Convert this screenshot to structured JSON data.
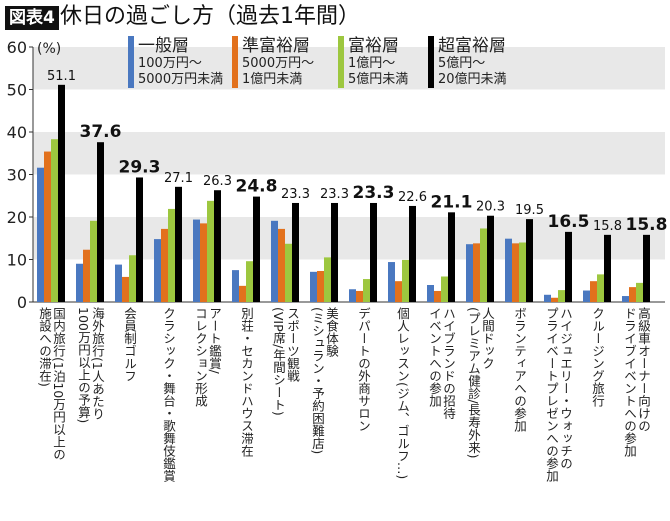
{
  "title_badge": "図表4",
  "title": "休日の過ごし方（過去1年間）",
  "chart_data": {
    "type": "bar",
    "ylabel": "(%)",
    "ylim": [
      0,
      60
    ],
    "yticks": [
      0,
      10,
      20,
      30,
      40,
      50,
      60
    ],
    "grid": "alternating gray bands",
    "legend_placement": "top",
    "categories": [
      [
        "国内旅行(1泊10万円以上の",
        "施設への滞在)"
      ],
      [
        "海外旅行(1人あたり",
        "100万円以上の予算)"
      ],
      [
        "会員制ゴルフ"
      ],
      [
        "クラシック・舞台・歌舞伎鑑賞"
      ],
      [
        "アート鑑賞/",
        "コレクション形成"
      ],
      [
        "別荘・セカンドハウス滞在"
      ],
      [
        "スポーツ観戦",
        "(VIP席/年間シート)"
      ],
      [
        "美食体験",
        "(ミシュラン・予約困難店)"
      ],
      [
        "デパートの外商サロン"
      ],
      [
        "個人レッスン(ジム、ゴルフ…)"
      ],
      [
        "ハイブランドの招待",
        "イベントへの参加"
      ],
      [
        "人間ドック",
        "(プレミアム健診/長寿外来)"
      ],
      [
        "ボランティアへの参加"
      ],
      [
        "ハイジュエリー・ウォッチの",
        "プライベートプレゼンへの参加"
      ],
      [
        "クルージング旅行"
      ],
      [
        "高級車オーナー向けの",
        "ドライブイベントへの参加"
      ]
    ],
    "series": [
      {
        "name": "一般層",
        "desc": [
          "100万円〜",
          "5000万円未満"
        ],
        "color": "#4a78c0",
        "values": [
          31.6,
          9.0,
          8.8,
          14.8,
          19.4,
          7.5,
          19.1,
          7.1,
          3.0,
          9.4,
          4.0,
          13.6,
          14.9,
          1.7,
          2.7,
          1.4
        ]
      },
      {
        "name": "準富裕層",
        "desc": [
          "5000万円〜",
          "1億円未満"
        ],
        "color": "#e2711d",
        "values": [
          35.4,
          12.3,
          5.9,
          17.2,
          18.5,
          3.8,
          17.2,
          7.3,
          2.6,
          4.9,
          2.6,
          13.8,
          13.8,
          1.0,
          4.9,
          3.5
        ]
      },
      {
        "name": "富裕層",
        "desc": [
          "1億円〜",
          "5億円未満"
        ],
        "color": "#9dc73f",
        "values": [
          38.3,
          19.1,
          11.0,
          21.9,
          23.8,
          9.6,
          13.7,
          10.5,
          5.4,
          9.9,
          6.0,
          17.3,
          14.0,
          2.8,
          6.5,
          4.5
        ]
      },
      {
        "name": "超富裕層",
        "desc": [
          "5億円〜",
          "20億円未満"
        ],
        "color": "#000000",
        "values": [
          51.1,
          37.6,
          29.3,
          27.1,
          26.3,
          24.8,
          23.3,
          23.3,
          23.3,
          22.6,
          21.1,
          20.3,
          19.5,
          16.5,
          15.8,
          15.8
        ]
      }
    ],
    "data_labels": [
      "51.1",
      "37.6",
      "29.3",
      "27.1",
      "26.3",
      "24.8",
      "23.3",
      "23.3",
      "23.3",
      "22.6",
      "21.1",
      "20.3",
      "19.5",
      "16.5",
      "15.8",
      "15.8"
    ],
    "bold_labels": [
      false,
      true,
      true,
      false,
      false,
      true,
      false,
      false,
      true,
      false,
      true,
      false,
      false,
      true,
      false,
      true
    ]
  }
}
